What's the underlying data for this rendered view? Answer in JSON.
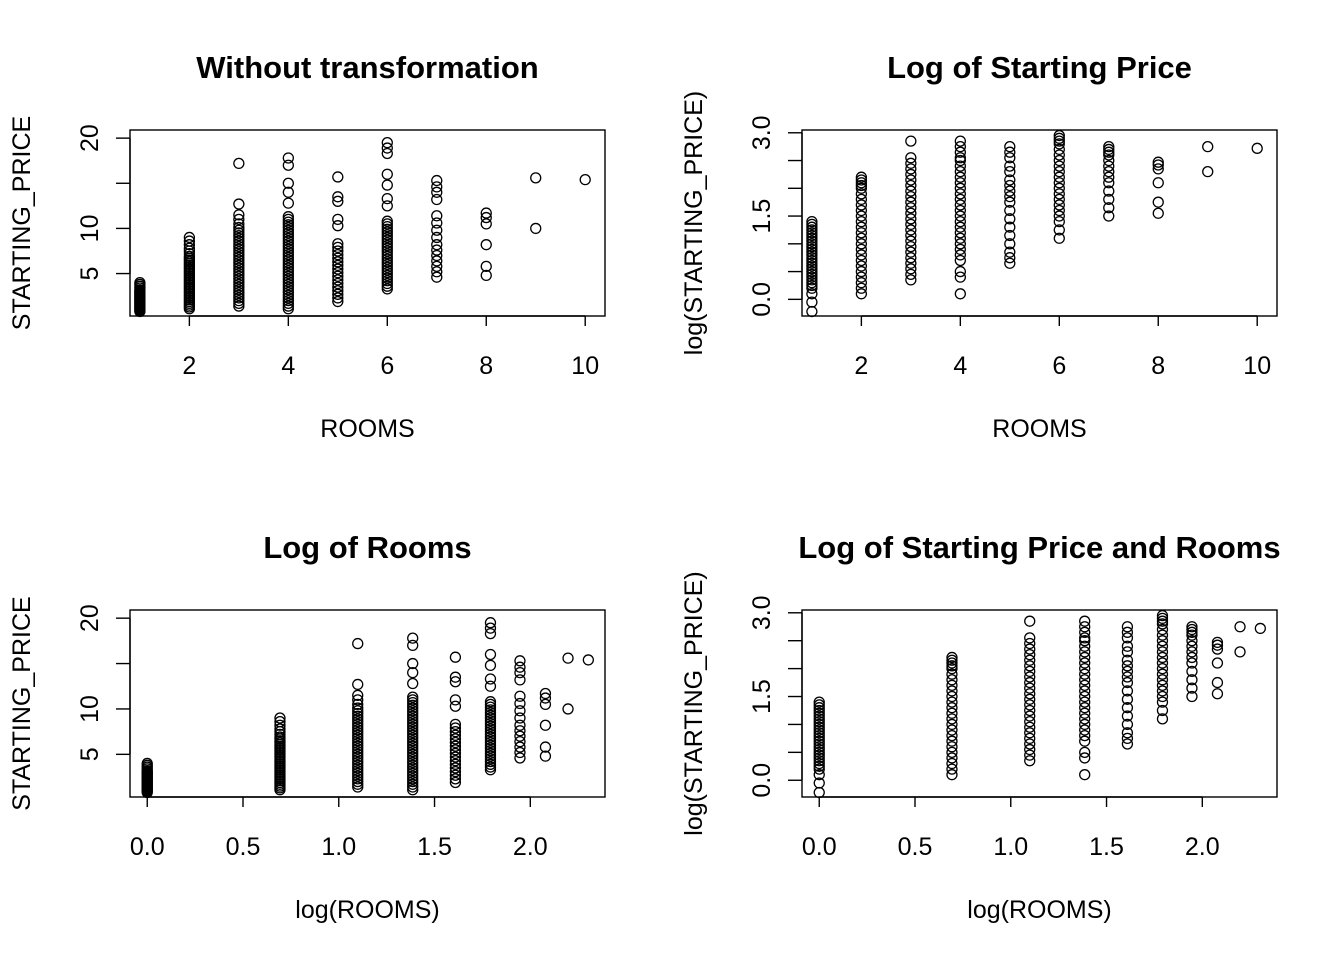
{
  "chart_data": [
    {
      "type": "scatter",
      "title": "Without transformation",
      "xlabel": "ROOMS",
      "ylabel": "STARTING_PRICE",
      "xlim": [
        0.8,
        10.4
      ],
      "ylim": [
        0.3,
        20.9
      ],
      "xticks": [
        2,
        4,
        6,
        8,
        10
      ],
      "xtick_labels": [
        "2",
        "4",
        "6",
        "8",
        "10"
      ],
      "yticks": [
        5,
        10,
        15,
        20
      ],
      "ytick_labels": [
        "5",
        "10",
        "",
        "20"
      ],
      "clusters": [
        {
          "x": 1,
          "y": [
            0.8,
            0.9,
            1.0,
            1.1,
            1.2,
            1.3,
            1.4,
            1.5,
            1.6,
            1.7,
            1.8,
            1.9,
            2.0,
            2.1,
            2.2,
            2.3,
            2.4,
            2.5,
            2.6,
            2.7,
            2.8,
            2.9,
            3.0,
            3.1,
            3.2,
            3.4,
            3.6,
            3.8,
            4.0
          ]
        },
        {
          "x": 2,
          "y": [
            1.1,
            1.3,
            1.5,
            1.7,
            1.9,
            2.1,
            2.3,
            2.5,
            2.7,
            2.9,
            3.1,
            3.3,
            3.5,
            3.7,
            3.9,
            4.1,
            4.3,
            4.5,
            4.7,
            4.9,
            5.1,
            5.3,
            5.5,
            5.7,
            5.9,
            6.1,
            6.3,
            6.5,
            6.7,
            6.9,
            7.2,
            7.5,
            7.8,
            8.2,
            8.6,
            9.0
          ]
        },
        {
          "x": 3,
          "y": [
            1.4,
            1.7,
            2.0,
            2.3,
            2.6,
            2.9,
            3.2,
            3.5,
            3.8,
            4.1,
            4.4,
            4.7,
            5.0,
            5.3,
            5.6,
            5.9,
            6.2,
            6.5,
            6.8,
            7.1,
            7.4,
            7.7,
            8.0,
            8.3,
            8.6,
            8.9,
            9.2,
            9.5,
            9.8,
            10.1,
            10.5,
            11.0,
            11.5,
            12.7,
            17.2
          ]
        },
        {
          "x": 4,
          "y": [
            1.1,
            1.4,
            1.7,
            2.0,
            2.3,
            2.6,
            2.9,
            3.2,
            3.5,
            3.8,
            4.1,
            4.4,
            4.7,
            5.0,
            5.3,
            5.6,
            5.9,
            6.2,
            6.5,
            6.8,
            7.1,
            7.4,
            7.7,
            8.0,
            8.3,
            8.6,
            8.9,
            9.2,
            9.5,
            9.8,
            10.1,
            10.4,
            10.7,
            11.0,
            11.3,
            12.8,
            14.0,
            15.0,
            17.0,
            17.8
          ]
        },
        {
          "x": 5,
          "y": [
            1.9,
            2.3,
            2.7,
            3.1,
            3.5,
            3.9,
            4.3,
            4.7,
            5.1,
            5.5,
            5.9,
            6.3,
            6.7,
            7.1,
            7.5,
            7.9,
            8.3,
            10.3,
            11.0,
            13.0,
            13.5,
            15.7
          ]
        },
        {
          "x": 6,
          "y": [
            3.3,
            3.6,
            3.9,
            4.2,
            4.5,
            4.8,
            5.1,
            5.4,
            5.7,
            6.0,
            6.3,
            6.6,
            6.9,
            7.2,
            7.5,
            7.8,
            8.1,
            8.4,
            8.7,
            9.0,
            9.3,
            9.6,
            9.9,
            10.2,
            10.5,
            10.8,
            12.5,
            13.3,
            14.8,
            16.0,
            18.3,
            18.9,
            19.5
          ]
        },
        {
          "x": 7,
          "y": [
            4.6,
            5.2,
            5.8,
            6.4,
            7.0,
            7.6,
            8.2,
            9.0,
            9.8,
            10.6,
            11.4,
            13.2,
            14.0,
            14.6,
            15.3
          ]
        },
        {
          "x": 8,
          "y": [
            4.8,
            5.8,
            8.2,
            10.5,
            11.2,
            11.7
          ]
        },
        {
          "x": 9,
          "y": [
            10.0,
            15.6
          ]
        },
        {
          "x": 10,
          "y": [
            15.4
          ]
        }
      ]
    },
    {
      "type": "scatter",
      "title": "Log of Starting Price",
      "xlabel": "ROOMS",
      "ylabel": "log(STARTING_PRICE)",
      "xlim": [
        0.8,
        10.4
      ],
      "ylim": [
        -0.3,
        3.05
      ],
      "xticks": [
        2,
        4,
        6,
        8,
        10
      ],
      "xtick_labels": [
        "2",
        "4",
        "6",
        "8",
        "10"
      ],
      "yticks": [
        0.0,
        0.5,
        1.0,
        1.5,
        2.0,
        2.5,
        3.0
      ],
      "ytick_labels": [
        "0.0",
        "",
        "",
        "1.5",
        "",
        "",
        "3.0"
      ],
      "clusters": [
        {
          "x": 1,
          "y": [
            -0.22,
            -0.05,
            0.1,
            0.2,
            0.25,
            0.3,
            0.35,
            0.4,
            0.45,
            0.5,
            0.55,
            0.6,
            0.65,
            0.7,
            0.75,
            0.8,
            0.85,
            0.9,
            0.95,
            1.0,
            1.05,
            1.1,
            1.15,
            1.2,
            1.25,
            1.3,
            1.35,
            1.4
          ]
        },
        {
          "x": 2,
          "y": [
            0.1,
            0.2,
            0.3,
            0.4,
            0.5,
            0.6,
            0.7,
            0.8,
            0.9,
            1.0,
            1.1,
            1.2,
            1.3,
            1.4,
            1.5,
            1.6,
            1.7,
            1.8,
            1.9,
            2.0,
            2.05,
            2.1,
            2.15,
            2.2
          ]
        },
        {
          "x": 3,
          "y": [
            0.35,
            0.45,
            0.55,
            0.65,
            0.75,
            0.85,
            0.95,
            1.05,
            1.15,
            1.25,
            1.35,
            1.45,
            1.55,
            1.65,
            1.75,
            1.85,
            1.95,
            2.05,
            2.15,
            2.25,
            2.35,
            2.45,
            2.55,
            2.85
          ]
        },
        {
          "x": 4,
          "y": [
            0.1,
            0.4,
            0.5,
            0.7,
            0.8,
            0.9,
            1.0,
            1.1,
            1.2,
            1.3,
            1.4,
            1.5,
            1.6,
            1.7,
            1.8,
            1.9,
            2.0,
            2.1,
            2.2,
            2.3,
            2.4,
            2.5,
            2.55,
            2.65,
            2.75,
            2.85
          ]
        },
        {
          "x": 5,
          "y": [
            0.65,
            0.75,
            0.85,
            1.0,
            1.15,
            1.3,
            1.45,
            1.6,
            1.75,
            1.85,
            1.95,
            2.05,
            2.15,
            2.3,
            2.4,
            2.55,
            2.65,
            2.75
          ]
        },
        {
          "x": 6,
          "y": [
            1.1,
            1.25,
            1.4,
            1.5,
            1.6,
            1.7,
            1.8,
            1.9,
            2.0,
            2.1,
            2.2,
            2.3,
            2.4,
            2.5,
            2.6,
            2.7,
            2.8,
            2.85,
            2.9,
            2.95
          ]
        },
        {
          "x": 7,
          "y": [
            1.5,
            1.65,
            1.8,
            1.95,
            2.1,
            2.2,
            2.3,
            2.4,
            2.5,
            2.6,
            2.65,
            2.7,
            2.75
          ]
        },
        {
          "x": 8,
          "y": [
            1.55,
            1.75,
            2.1,
            2.35,
            2.42,
            2.47
          ]
        },
        {
          "x": 9,
          "y": [
            2.3,
            2.75
          ]
        },
        {
          "x": 10,
          "y": [
            2.72
          ]
        }
      ]
    },
    {
      "type": "scatter",
      "title": "Log of Rooms",
      "xlabel": "log(ROOMS)",
      "ylabel": "STARTING_PRICE",
      "xlim": [
        -0.09,
        2.39
      ],
      "ylim": [
        0.3,
        20.9
      ],
      "xticks": [
        0.0,
        0.5,
        1.0,
        1.5,
        2.0
      ],
      "xtick_labels": [
        "0.0",
        "0.5",
        "1.0",
        "1.5",
        "2.0"
      ],
      "yticks": [
        5,
        10,
        15,
        20
      ],
      "ytick_labels": [
        "5",
        "10",
        "",
        "20"
      ],
      "clusters": [
        {
          "x": 0.0,
          "y": [
            0.8,
            0.9,
            1.0,
            1.1,
            1.2,
            1.3,
            1.4,
            1.5,
            1.6,
            1.7,
            1.8,
            1.9,
            2.0,
            2.1,
            2.2,
            2.3,
            2.4,
            2.5,
            2.6,
            2.7,
            2.8,
            2.9,
            3.0,
            3.1,
            3.2,
            3.4,
            3.6,
            3.8,
            4.0
          ]
        },
        {
          "x": 0.693,
          "y": [
            1.1,
            1.3,
            1.5,
            1.7,
            1.9,
            2.1,
            2.3,
            2.5,
            2.7,
            2.9,
            3.1,
            3.3,
            3.5,
            3.7,
            3.9,
            4.1,
            4.3,
            4.5,
            4.7,
            4.9,
            5.1,
            5.3,
            5.5,
            5.7,
            5.9,
            6.1,
            6.3,
            6.5,
            6.7,
            6.9,
            7.2,
            7.5,
            7.8,
            8.2,
            8.6,
            9.0
          ]
        },
        {
          "x": 1.099,
          "y": [
            1.4,
            1.7,
            2.0,
            2.3,
            2.6,
            2.9,
            3.2,
            3.5,
            3.8,
            4.1,
            4.4,
            4.7,
            5.0,
            5.3,
            5.6,
            5.9,
            6.2,
            6.5,
            6.8,
            7.1,
            7.4,
            7.7,
            8.0,
            8.3,
            8.6,
            8.9,
            9.2,
            9.5,
            9.8,
            10.1,
            10.5,
            11.0,
            11.5,
            12.7,
            17.2
          ]
        },
        {
          "x": 1.386,
          "y": [
            1.1,
            1.4,
            1.7,
            2.0,
            2.3,
            2.6,
            2.9,
            3.2,
            3.5,
            3.8,
            4.1,
            4.4,
            4.7,
            5.0,
            5.3,
            5.6,
            5.9,
            6.2,
            6.5,
            6.8,
            7.1,
            7.4,
            7.7,
            8.0,
            8.3,
            8.6,
            8.9,
            9.2,
            9.5,
            9.8,
            10.1,
            10.4,
            10.7,
            11.0,
            11.3,
            12.8,
            14.0,
            15.0,
            17.0,
            17.8
          ]
        },
        {
          "x": 1.609,
          "y": [
            1.9,
            2.3,
            2.7,
            3.1,
            3.5,
            3.9,
            4.3,
            4.7,
            5.1,
            5.5,
            5.9,
            6.3,
            6.7,
            7.1,
            7.5,
            7.9,
            8.3,
            10.3,
            11.0,
            13.0,
            13.5,
            15.7
          ]
        },
        {
          "x": 1.792,
          "y": [
            3.3,
            3.6,
            3.9,
            4.2,
            4.5,
            4.8,
            5.1,
            5.4,
            5.7,
            6.0,
            6.3,
            6.6,
            6.9,
            7.2,
            7.5,
            7.8,
            8.1,
            8.4,
            8.7,
            9.0,
            9.3,
            9.6,
            9.9,
            10.2,
            10.5,
            10.8,
            12.5,
            13.3,
            14.8,
            16.0,
            18.3,
            18.9,
            19.5
          ]
        },
        {
          "x": 1.946,
          "y": [
            4.6,
            5.2,
            5.8,
            6.4,
            7.0,
            7.6,
            8.2,
            9.0,
            9.8,
            10.6,
            11.4,
            13.2,
            14.0,
            14.6,
            15.3
          ]
        },
        {
          "x": 2.079,
          "y": [
            4.8,
            5.8,
            8.2,
            10.5,
            11.2,
            11.7
          ]
        },
        {
          "x": 2.197,
          "y": [
            10.0,
            15.6
          ]
        },
        {
          "x": 2.303,
          "y": [
            15.4
          ]
        }
      ]
    },
    {
      "type": "scatter",
      "title": "Log of Starting Price and Rooms",
      "xlabel": "log(ROOMS)",
      "ylabel": "log(STARTING_PRICE)",
      "xlim": [
        -0.09,
        2.39
      ],
      "ylim": [
        -0.3,
        3.05
      ],
      "xticks": [
        0.0,
        0.5,
        1.0,
        1.5,
        2.0
      ],
      "xtick_labels": [
        "0.0",
        "0.5",
        "1.0",
        "1.5",
        "2.0"
      ],
      "yticks": [
        0.0,
        0.5,
        1.0,
        1.5,
        2.0,
        2.5,
        3.0
      ],
      "ytick_labels": [
        "0.0",
        "",
        "",
        "1.5",
        "",
        "",
        "3.0"
      ],
      "clusters": [
        {
          "x": 0.0,
          "y": [
            -0.22,
            -0.05,
            0.1,
            0.2,
            0.25,
            0.3,
            0.35,
            0.4,
            0.45,
            0.5,
            0.55,
            0.6,
            0.65,
            0.7,
            0.75,
            0.8,
            0.85,
            0.9,
            0.95,
            1.0,
            1.05,
            1.1,
            1.15,
            1.2,
            1.25,
            1.3,
            1.35,
            1.4
          ]
        },
        {
          "x": 0.693,
          "y": [
            0.1,
            0.2,
            0.3,
            0.4,
            0.5,
            0.6,
            0.7,
            0.8,
            0.9,
            1.0,
            1.1,
            1.2,
            1.3,
            1.4,
            1.5,
            1.6,
            1.7,
            1.8,
            1.9,
            2.0,
            2.05,
            2.1,
            2.15,
            2.2
          ]
        },
        {
          "x": 1.099,
          "y": [
            0.35,
            0.45,
            0.55,
            0.65,
            0.75,
            0.85,
            0.95,
            1.05,
            1.15,
            1.25,
            1.35,
            1.45,
            1.55,
            1.65,
            1.75,
            1.85,
            1.95,
            2.05,
            2.15,
            2.25,
            2.35,
            2.45,
            2.55,
            2.85
          ]
        },
        {
          "x": 1.386,
          "y": [
            0.1,
            0.4,
            0.5,
            0.7,
            0.8,
            0.9,
            1.0,
            1.1,
            1.2,
            1.3,
            1.4,
            1.5,
            1.6,
            1.7,
            1.8,
            1.9,
            2.0,
            2.1,
            2.2,
            2.3,
            2.4,
            2.5,
            2.55,
            2.65,
            2.75,
            2.85
          ]
        },
        {
          "x": 1.609,
          "y": [
            0.65,
            0.75,
            0.85,
            1.0,
            1.15,
            1.3,
            1.45,
            1.6,
            1.75,
            1.85,
            1.95,
            2.05,
            2.15,
            2.3,
            2.4,
            2.55,
            2.65,
            2.75
          ]
        },
        {
          "x": 1.792,
          "y": [
            1.1,
            1.25,
            1.4,
            1.5,
            1.6,
            1.7,
            1.8,
            1.9,
            2.0,
            2.1,
            2.2,
            2.3,
            2.4,
            2.5,
            2.6,
            2.7,
            2.8,
            2.85,
            2.9,
            2.95
          ]
        },
        {
          "x": 1.946,
          "y": [
            1.5,
            1.65,
            1.8,
            1.95,
            2.1,
            2.2,
            2.3,
            2.4,
            2.5,
            2.6,
            2.65,
            2.7,
            2.75
          ]
        },
        {
          "x": 2.079,
          "y": [
            1.55,
            1.75,
            2.1,
            2.35,
            2.42,
            2.47
          ]
        },
        {
          "x": 2.197,
          "y": [
            2.3,
            2.75
          ]
        },
        {
          "x": 2.303,
          "y": [
            2.72
          ]
        }
      ]
    }
  ]
}
